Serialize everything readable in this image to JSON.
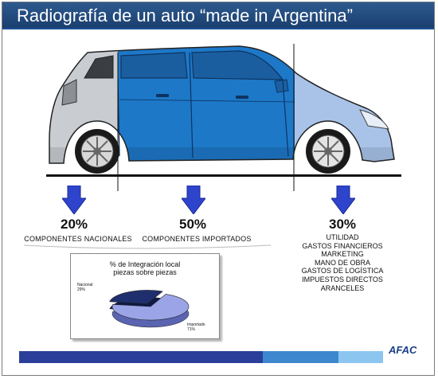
{
  "header": {
    "title": "Radiografía de un auto “made in Argentina”"
  },
  "sections": [
    {
      "percent": "20%",
      "label": "COMPONENTES NACIONALES",
      "color": "#c9cdd2"
    },
    {
      "percent": "50%",
      "label": "COMPONENTES IMPORTADOS",
      "color": "#1d78c8"
    },
    {
      "percent": "30%",
      "label": "",
      "color": "#a9c3e8",
      "items": [
        "UTILIDAD",
        "GASTOS FINANCIEROS",
        "MARKETING",
        "MANO DE OBRA",
        "GASTOS DE LOGÍSTICA",
        "IMPUESTOS DIRECTOS",
        "ARANCELES"
      ]
    }
  ],
  "inset_chart": {
    "title_line1": "% de Integración local",
    "title_line2": "piezas sobre piezas",
    "chart_data": {
      "type": "pie",
      "title": "% de Integración local piezas sobre piezas",
      "slices": [
        {
          "name": "Nacional",
          "value_label": "29%",
          "value": 29,
          "color": "#1f2f6e"
        },
        {
          "name": "Importado",
          "value_label": "71%",
          "value": 71,
          "color": "#9aa4e6"
        }
      ]
    }
  },
  "footer": {
    "logo": "AFAC"
  },
  "colors": {
    "arrow": "#2f44cc",
    "title_bar": "#1f4676",
    "bar_dark": "#2b3f9a",
    "bar_mid": "#3d87cf",
    "bar_light": "#8cc6f0"
  },
  "icons": {
    "arrow": "down-arrow-icon"
  }
}
